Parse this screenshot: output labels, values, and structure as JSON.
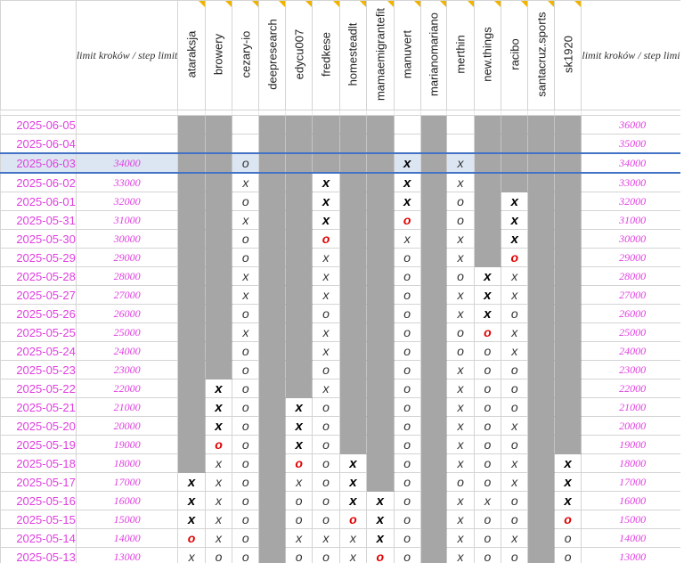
{
  "header": {
    "limit_label": "limit kroków / step limit",
    "limit_label_right": "limit kroków / step limit",
    "users": [
      "ataraksja",
      "browery",
      "cezary-io",
      "deepresearch",
      "edycu007",
      "fredkese",
      "homesteadlt",
      "mamaemigrantefit",
      "manuvert",
      "marianomariano",
      "merthin",
      "new.things",
      "racibo",
      "santacruz.sports",
      "sk1920"
    ]
  },
  "colors": {
    "date_text": "#e040e0",
    "gray_fill": "#a6a6a6",
    "red_mark": "#e00000",
    "selection": "#2f6fd6",
    "comment_marker": "#f0b400"
  },
  "rows": [
    {
      "date": "2025-06-05",
      "limit": "",
      "limit_right": "36000",
      "cells": [
        "g",
        "g",
        "",
        "g",
        "g",
        "g",
        "g",
        "g",
        "",
        "g",
        "",
        "g",
        "g",
        "g",
        "g"
      ]
    },
    {
      "date": "2025-06-04",
      "limit": "",
      "limit_right": "35000",
      "cells": [
        "g",
        "g",
        "",
        "g",
        "g",
        "g",
        "g",
        "g",
        "",
        "g",
        "",
        "g",
        "g",
        "g",
        "g"
      ]
    },
    {
      "date": "2025-06-03",
      "limit": "34000",
      "limit_right": "34000",
      "cells": [
        "g",
        "g",
        "o",
        "g",
        "g",
        "g",
        "g",
        "g",
        "X",
        "g",
        "x",
        "g",
        "g",
        "g",
        "g"
      ]
    },
    {
      "date": "2025-06-02",
      "limit": "33000",
      "limit_right": "33000",
      "cells": [
        "g",
        "g",
        "x",
        "g",
        "g",
        "X",
        "g",
        "g",
        "X",
        "g",
        "x",
        "g",
        "g",
        "g",
        "g"
      ]
    },
    {
      "date": "2025-06-01",
      "limit": "32000",
      "limit_right": "32000",
      "cells": [
        "g",
        "g",
        "o",
        "g",
        "g",
        "X",
        "g",
        "g",
        "X",
        "g",
        "o",
        "g",
        "X",
        "g",
        "g"
      ]
    },
    {
      "date": "2025-05-31",
      "limit": "31000",
      "limit_right": "31000",
      "cells": [
        "g",
        "g",
        "x",
        "g",
        "g",
        "X",
        "g",
        "g",
        "O",
        "g",
        "o",
        "g",
        "X",
        "g",
        "g"
      ]
    },
    {
      "date": "2025-05-30",
      "limit": "30000",
      "limit_right": "30000",
      "cells": [
        "g",
        "g",
        "o",
        "g",
        "g",
        "O",
        "g",
        "g",
        "x",
        "g",
        "x",
        "g",
        "X",
        "g",
        "g"
      ]
    },
    {
      "date": "2025-05-29",
      "limit": "29000",
      "limit_right": "29000",
      "cells": [
        "g",
        "g",
        "o",
        "g",
        "g",
        "x",
        "g",
        "g",
        "o",
        "g",
        "x",
        "g",
        "O",
        "g",
        "g"
      ]
    },
    {
      "date": "2025-05-28",
      "limit": "28000",
      "limit_right": "28000",
      "cells": [
        "g",
        "g",
        "x",
        "g",
        "g",
        "x",
        "g",
        "g",
        "o",
        "g",
        "o",
        "X",
        "x",
        "g",
        "g"
      ]
    },
    {
      "date": "2025-05-27",
      "limit": "27000",
      "limit_right": "27000",
      "cells": [
        "g",
        "g",
        "x",
        "g",
        "g",
        "x",
        "g",
        "g",
        "o",
        "g",
        "x",
        "X",
        "x",
        "g",
        "g"
      ]
    },
    {
      "date": "2025-05-26",
      "limit": "26000",
      "limit_right": "26000",
      "cells": [
        "g",
        "g",
        "o",
        "g",
        "g",
        "o",
        "g",
        "g",
        "o",
        "g",
        "x",
        "X",
        "o",
        "g",
        "g"
      ]
    },
    {
      "date": "2025-05-25",
      "limit": "25000",
      "limit_right": "25000",
      "cells": [
        "g",
        "g",
        "x",
        "g",
        "g",
        "x",
        "g",
        "g",
        "o",
        "g",
        "o",
        "O",
        "x",
        "g",
        "g"
      ]
    },
    {
      "date": "2025-05-24",
      "limit": "24000",
      "limit_right": "24000",
      "cells": [
        "g",
        "g",
        "o",
        "g",
        "g",
        "x",
        "g",
        "g",
        "o",
        "g",
        "o",
        "o",
        "x",
        "g",
        "g"
      ]
    },
    {
      "date": "2025-05-23",
      "limit": "23000",
      "limit_right": "23000",
      "cells": [
        "g",
        "g",
        "o",
        "g",
        "g",
        "o",
        "g",
        "g",
        "o",
        "g",
        "x",
        "o",
        "o",
        "g",
        "g"
      ]
    },
    {
      "date": "2025-05-22",
      "limit": "22000",
      "limit_right": "22000",
      "cells": [
        "g",
        "X",
        "o",
        "g",
        "g",
        "x",
        "g",
        "g",
        "o",
        "g",
        "x",
        "o",
        "o",
        "g",
        "g"
      ]
    },
    {
      "date": "2025-05-21",
      "limit": "21000",
      "limit_right": "21000",
      "cells": [
        "g",
        "X",
        "o",
        "g",
        "X",
        "o",
        "g",
        "g",
        "o",
        "g",
        "x",
        "o",
        "o",
        "g",
        "g"
      ]
    },
    {
      "date": "2025-05-20",
      "limit": "20000",
      "limit_right": "20000",
      "cells": [
        "g",
        "X",
        "o",
        "g",
        "X",
        "o",
        "g",
        "g",
        "o",
        "g",
        "x",
        "o",
        "x",
        "g",
        "g"
      ]
    },
    {
      "date": "2025-05-19",
      "limit": "19000",
      "limit_right": "19000",
      "cells": [
        "g",
        "O",
        "o",
        "g",
        "X",
        "o",
        "g",
        "g",
        "o",
        "g",
        "x",
        "o",
        "o",
        "g",
        "g"
      ]
    },
    {
      "date": "2025-05-18",
      "limit": "18000",
      "limit_right": "18000",
      "cells": [
        "g",
        "x",
        "o",
        "g",
        "O",
        "o",
        "X",
        "g",
        "o",
        "g",
        "x",
        "o",
        "x",
        "g",
        "X"
      ]
    },
    {
      "date": "2025-05-17",
      "limit": "17000",
      "limit_right": "17000",
      "cells": [
        "X",
        "x",
        "o",
        "g",
        "x",
        "o",
        "X",
        "g",
        "o",
        "g",
        "o",
        "o",
        "x",
        "g",
        "X"
      ]
    },
    {
      "date": "2025-05-16",
      "limit": "16000",
      "limit_right": "16000",
      "cells": [
        "X",
        "x",
        "o",
        "g",
        "o",
        "o",
        "X",
        "X",
        "o",
        "g",
        "x",
        "x",
        "o",
        "g",
        "X"
      ]
    },
    {
      "date": "2025-05-15",
      "limit": "15000",
      "limit_right": "15000",
      "cells": [
        "X",
        "x",
        "o",
        "g",
        "o",
        "o",
        "O",
        "X",
        "o",
        "g",
        "x",
        "o",
        "o",
        "g",
        "O"
      ]
    },
    {
      "date": "2025-05-14",
      "limit": "14000",
      "limit_right": "14000",
      "cells": [
        "O",
        "x",
        "o",
        "g",
        "x",
        "x",
        "x",
        "X",
        "o",
        "g",
        "x",
        "o",
        "x",
        "g",
        "o"
      ]
    },
    {
      "date": "2025-05-13",
      "limit": "13000",
      "limit_right": "13000",
      "cells": [
        "x",
        "o",
        "o",
        "g",
        "o",
        "o",
        "x",
        "O",
        "o",
        "g",
        "x",
        "o",
        "o",
        "g",
        "o"
      ]
    }
  ]
}
